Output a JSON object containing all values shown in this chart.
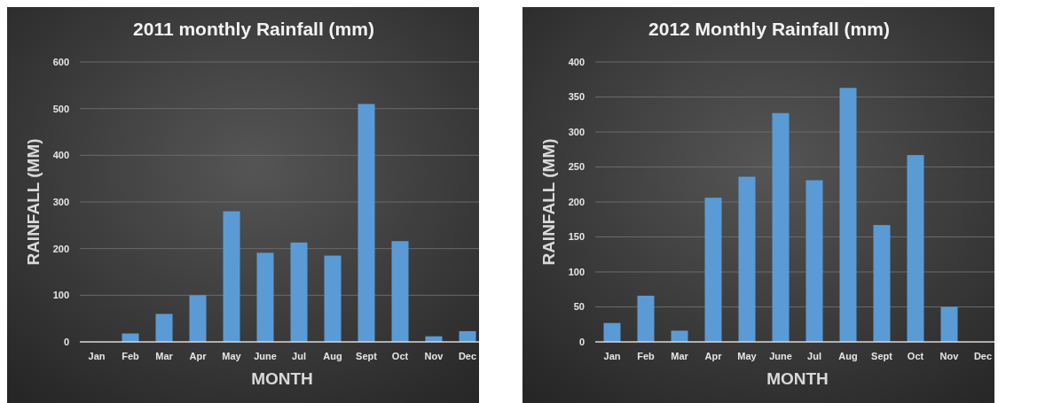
{
  "chart_data": [
    {
      "type": "bar",
      "title": "2011 monthly Rainfall (mm)",
      "xlabel": "MONTH",
      "ylabel": "RAINFALL (MM)",
      "categories": [
        "Jan",
        "Feb",
        "Mar",
        "Apr",
        "May",
        "June",
        "Jul",
        "Aug",
        "Sept",
        "Oct",
        "Nov",
        "Dec"
      ],
      "values": [
        0,
        18,
        60,
        100,
        280,
        191,
        213,
        185,
        510,
        216,
        12,
        23
      ],
      "color": "#5b9bd5",
      "ylim": [
        0,
        600
      ],
      "yticks": [
        0,
        100,
        200,
        300,
        400,
        500,
        600
      ],
      "grid": "y"
    },
    {
      "type": "bar",
      "title": "2012 Monthly Rainfall (mm)",
      "xlabel": "MONTH",
      "ylabel": "RAINFALL (MM)",
      "categories": [
        "Jan",
        "Feb",
        "Mar",
        "Apr",
        "May",
        "June",
        "Jul",
        "Aug",
        "Sept",
        "Oct",
        "Nov",
        "Dec"
      ],
      "values": [
        27,
        66,
        16,
        206,
        236,
        327,
        231,
        363,
        167,
        267,
        50,
        0
      ],
      "color": "#5b9bd5",
      "ylim": [
        0,
        400
      ],
      "yticks": [
        0,
        50,
        100,
        150,
        200,
        250,
        300,
        350,
        400
      ],
      "grid": "y"
    }
  ]
}
